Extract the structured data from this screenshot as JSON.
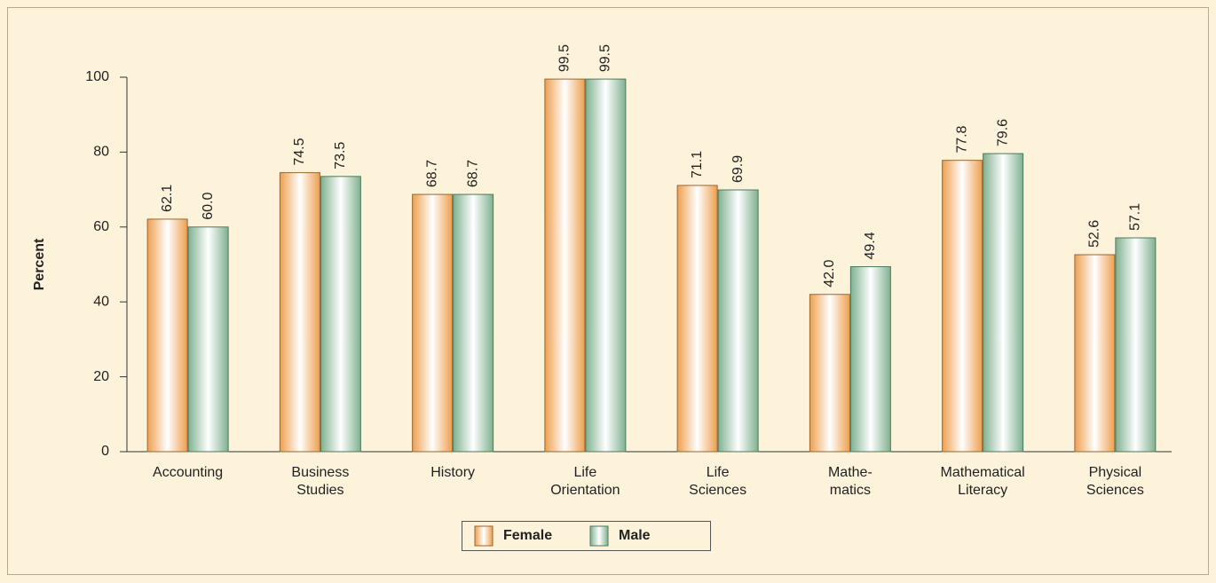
{
  "chart_data": {
    "type": "bar",
    "y_label": "Percent",
    "categories": [
      [
        "Accounting"
      ],
      [
        "Business",
        "Studies"
      ],
      [
        "History"
      ],
      [
        "Life",
        "Orientation"
      ],
      [
        "Life",
        "Sciences"
      ],
      [
        "Mathe-",
        "matics"
      ],
      [
        "Mathematical",
        "Literacy"
      ],
      [
        "Physical",
        "Sciences"
      ]
    ],
    "series": [
      {
        "name": "Female",
        "color": "#ee9f4f",
        "values": [
          62.1,
          74.5,
          68.7,
          99.5,
          71.1,
          42.0,
          77.8,
          52.6
        ],
        "value_labels": [
          "62.1",
          "74.5",
          "68.7",
          "99.5",
          "71.1",
          "42.0",
          "77.8",
          "52.6"
        ]
      },
      {
        "name": "Male",
        "color": "#7fb08f",
        "values": [
          60.0,
          73.5,
          68.7,
          99.5,
          69.9,
          49.4,
          79.6,
          57.1
        ],
        "value_labels": [
          "60.0",
          "73.5",
          "68.7",
          "99.5",
          "69.9",
          "49.4",
          "79.6",
          "57.1"
        ]
      }
    ],
    "ylim": [
      0,
      100
    ],
    "yticks": [
      0,
      20,
      40,
      60,
      80,
      100
    ],
    "grid": false,
    "legend": "bottom"
  }
}
